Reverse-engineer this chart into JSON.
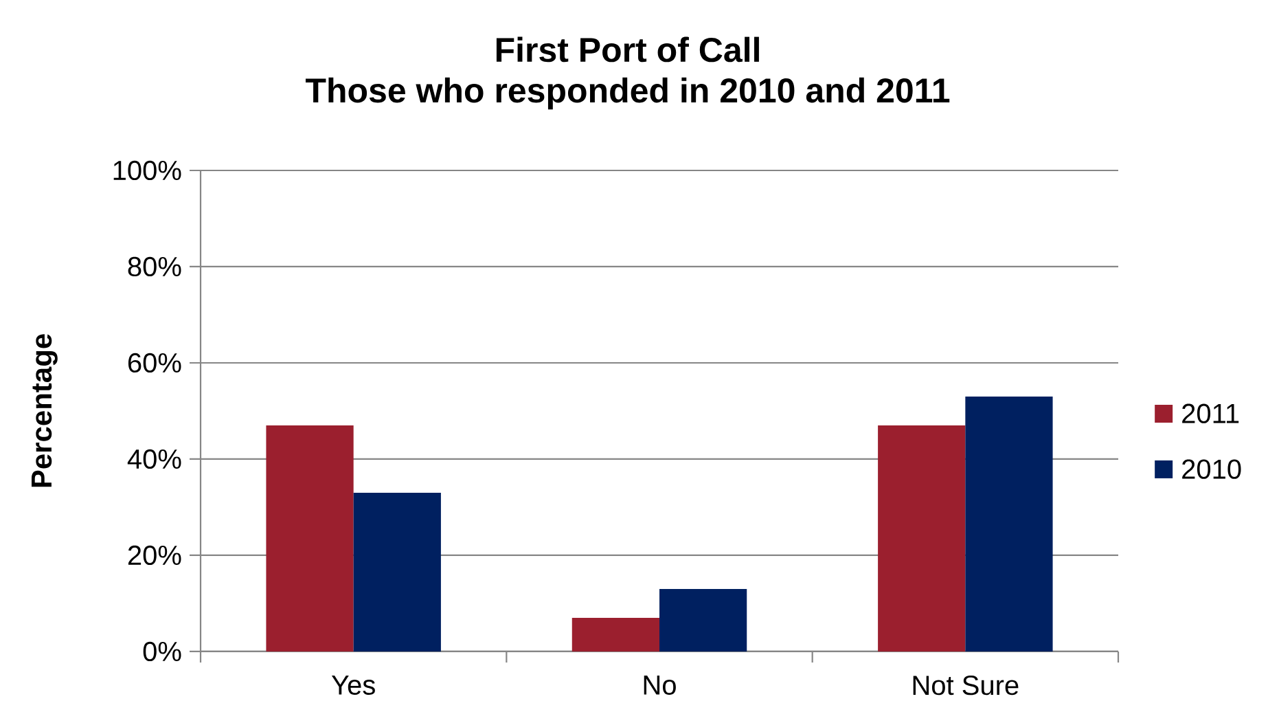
{
  "chart_data": {
    "type": "bar",
    "title": "First Port of Call",
    "subtitle": "Those who responded in 2010 and 2011",
    "ylabel": "Percentage",
    "categories": [
      "Yes",
      "No",
      "Not Sure"
    ],
    "series": [
      {
        "name": "2011",
        "color": "#9b1f2e",
        "values": [
          47,
          7,
          47
        ]
      },
      {
        "name": "2010",
        "color": "#002060",
        "values": [
          33,
          13,
          53
        ]
      }
    ],
    "ylim": [
      0,
      100
    ],
    "yticks": [
      {
        "value": 0,
        "label": "0%"
      },
      {
        "value": 20,
        "label": "20%"
      },
      {
        "value": 40,
        "label": "40%"
      },
      {
        "value": 60,
        "label": "60%"
      },
      {
        "value": 80,
        "label": "80%"
      },
      {
        "value": 100,
        "label": "100%"
      }
    ],
    "grid": "y",
    "legend": "right"
  }
}
